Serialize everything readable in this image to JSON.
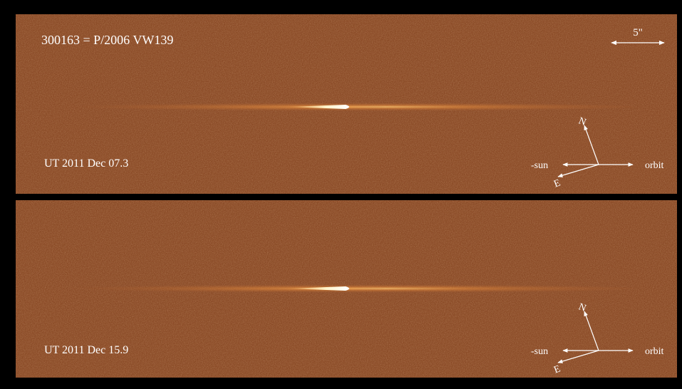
{
  "title": "300163 = P/2006 VW139",
  "scale_label": "5\"",
  "panels": [
    {
      "date": "UT 2011 Dec 07.3",
      "compass": {
        "north": "N",
        "east": "E",
        "sun": "-sun",
        "orbit": "orbit"
      }
    },
    {
      "date": "UT 2011 Dec 15.9",
      "compass": {
        "north": "N",
        "east": "E",
        "sun": "-sun",
        "orbit": "orbit"
      }
    }
  ]
}
